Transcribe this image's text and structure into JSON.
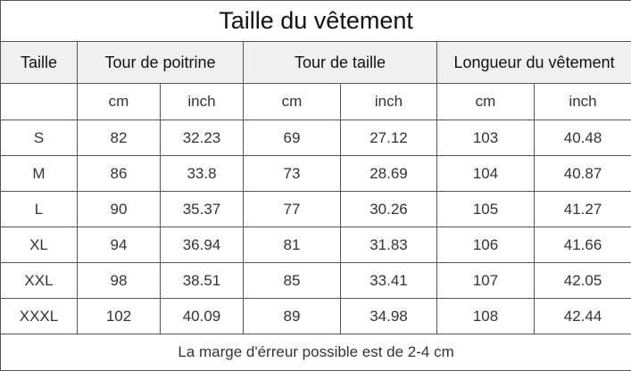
{
  "title": "Taille du vêtement",
  "headers": {
    "size": "Taille",
    "chest": "Tour de poitrine",
    "waist": "Tour de taille",
    "length": "Longueur du vêtement"
  },
  "units": [
    "cm",
    "inch",
    "cm",
    "inch",
    "cm",
    "inch"
  ],
  "rows": [
    {
      "size": "S",
      "values": [
        "82",
        "32.23",
        "69",
        "27.12",
        "103",
        "40.48"
      ]
    },
    {
      "size": "M",
      "values": [
        "86",
        "33.8",
        "73",
        "28.69",
        "104",
        "40.87"
      ]
    },
    {
      "size": "L",
      "values": [
        "90",
        "35.37",
        "77",
        "30.26",
        "105",
        "41.27"
      ]
    },
    {
      "size": "XL",
      "values": [
        "94",
        "36.94",
        "81",
        "31.83",
        "106",
        "41.66"
      ]
    },
    {
      "size": "XXL",
      "values": [
        "98",
        "38.51",
        "85",
        "33.41",
        "107",
        "42.05"
      ]
    },
    {
      "size": "XXXL",
      "values": [
        "102",
        "40.09",
        "89",
        "34.98",
        "108",
        "42.44"
      ]
    }
  ],
  "note": "La marge d'érreur possible est de 2-4 cm"
}
